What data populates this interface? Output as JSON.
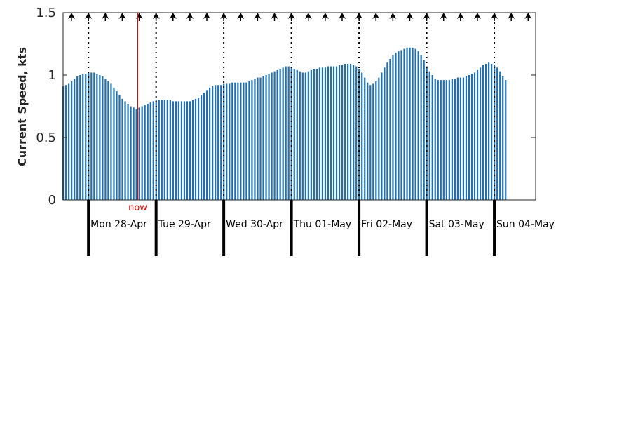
{
  "chart_data": {
    "type": "bar",
    "title": "",
    "xlabel": "",
    "ylabel": "Current Speed, kts",
    "ylim": [
      0,
      1.5
    ],
    "yticks": [
      "0",
      "0.5",
      "1",
      "1.5"
    ],
    "bar_color": "#1f6fb2",
    "now_color": "#e00000",
    "now_label": "now",
    "now_hour": 22,
    "grid": false,
    "day_labels": [
      "Mon 28-Apr",
      "Tue 29-Apr",
      "Wed 30-Apr",
      "Thu 01-May",
      "Fri 02-May",
      "Sat 03-May",
      "Sun 04-May"
    ],
    "direction_arrows": "north (up) at each 6-hour interval",
    "hourly_speed_start_hour": 0,
    "values": [
      0.91,
      0.92,
      0.93,
      0.95,
      0.97,
      0.99,
      1.0,
      1.01,
      1.01,
      1.02,
      1.02,
      1.02,
      1.01,
      1.0,
      0.99,
      0.97,
      0.95,
      0.93,
      0.9,
      0.87,
      0.84,
      0.81,
      0.79,
      0.77,
      0.75,
      0.74,
      0.73,
      0.74,
      0.75,
      0.76,
      0.77,
      0.78,
      0.79,
      0.8,
      0.8,
      0.8,
      0.8,
      0.8,
      0.8,
      0.79,
      0.79,
      0.79,
      0.79,
      0.79,
      0.79,
      0.79,
      0.8,
      0.81,
      0.82,
      0.84,
      0.86,
      0.88,
      0.9,
      0.91,
      0.92,
      0.92,
      0.92,
      0.93,
      0.93,
      0.93,
      0.94,
      0.94,
      0.94,
      0.94,
      0.94,
      0.94,
      0.95,
      0.96,
      0.97,
      0.98,
      0.98,
      0.99,
      1.0,
      1.01,
      1.02,
      1.03,
      1.04,
      1.05,
      1.06,
      1.07,
      1.07,
      1.06,
      1.05,
      1.04,
      1.03,
      1.02,
      1.02,
      1.03,
      1.04,
      1.05,
      1.05,
      1.06,
      1.06,
      1.06,
      1.07,
      1.07,
      1.07,
      1.07,
      1.08,
      1.08,
      1.09,
      1.09,
      1.09,
      1.08,
      1.07,
      1.05,
      1.02,
      0.98,
      0.94,
      0.92,
      0.93,
      0.95,
      0.98,
      1.02,
      1.06,
      1.1,
      1.13,
      1.16,
      1.18,
      1.19,
      1.2,
      1.21,
      1.22,
      1.22,
      1.22,
      1.21,
      1.19,
      1.16,
      1.12,
      1.07,
      1.03,
      1.0,
      0.97,
      0.96,
      0.96,
      0.96,
      0.96,
      0.96,
      0.97,
      0.97,
      0.98,
      0.98,
      0.98,
      0.99,
      1.0,
      1.01,
      1.02,
      1.04,
      1.06,
      1.08,
      1.09,
      1.1,
      1.09,
      1.08,
      1.06,
      1.03,
      0.99,
      0.96
    ]
  }
}
